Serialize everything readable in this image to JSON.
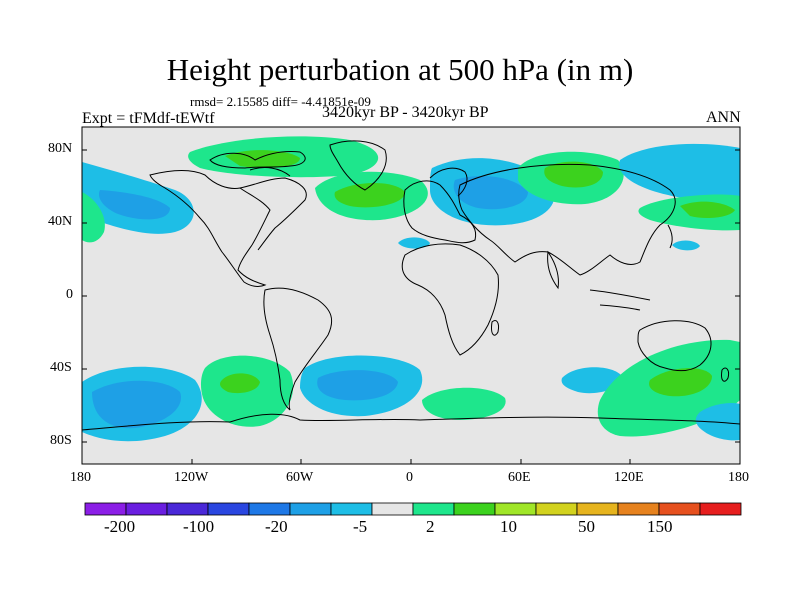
{
  "header": {
    "title": "Height perturbation at 500 hPa (in m)",
    "stats": "rmsd= 2.15585 diff= -4.41851e-09",
    "experiment": "Expt = tFMdf-tEWtf",
    "period": "3420kyr BP - 3420kyr BP",
    "season": "ANN"
  },
  "map": {
    "lat_labels": [
      "80N",
      "40N",
      "0",
      "40S",
      "80S"
    ],
    "lon_labels": [
      "180",
      "120W",
      "60W",
      "0",
      "60E",
      "120E",
      "180"
    ]
  },
  "colorbar": {
    "colors": [
      "#8b1ee6",
      "#6a1ee0",
      "#4a28d8",
      "#2a46e0",
      "#1e78e6",
      "#1ea0e6",
      "#1ebee6",
      "#e6e6e6",
      "#1ee68c",
      "#3cd21e",
      "#a0e628",
      "#d2d21e",
      "#e6b41e",
      "#e6821e",
      "#e6501e",
      "#e61e1e"
    ],
    "labels": [
      "-200",
      "-100",
      "-20",
      "-5",
      "2",
      "10",
      "50",
      "150"
    ]
  }
}
